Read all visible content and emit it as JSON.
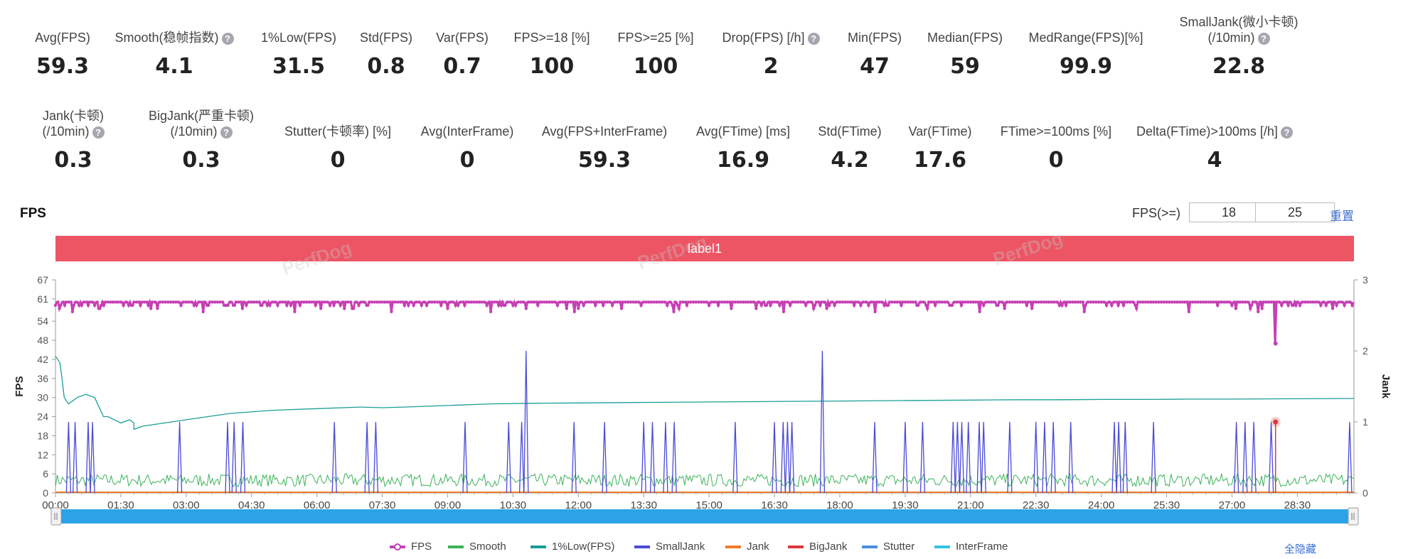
{
  "metrics_row1": [
    {
      "label": "Avg(FPS)",
      "value": "59.3",
      "help": false
    },
    {
      "label": "Smooth(稳帧指数)",
      "value": "4.1",
      "help": true
    },
    {
      "label": "1%Low(FPS)",
      "value": "31.5",
      "help": false
    },
    {
      "label": "Std(FPS)",
      "value": "0.8",
      "help": false
    },
    {
      "label": "Var(FPS)",
      "value": "0.7",
      "help": false
    },
    {
      "label": "FPS>=18 [%]",
      "value": "100",
      "help": false
    },
    {
      "label": "FPS>=25 [%]",
      "value": "100",
      "help": false
    },
    {
      "label": "Drop(FPS) [/h]",
      "value": "2",
      "help": true
    },
    {
      "label": "Min(FPS)",
      "value": "47",
      "help": false
    },
    {
      "label": "Median(FPS)",
      "value": "59",
      "help": false
    },
    {
      "label": "MedRange(FPS)[%]",
      "value": "99.9",
      "help": false
    },
    {
      "label": "SmallJank(微小卡顿)",
      "label2": "(/10min)",
      "value": "22.8",
      "help": true
    }
  ],
  "metrics_row2": [
    {
      "label": "Jank(卡顿)",
      "label2": "(/10min)",
      "value": "0.3",
      "help": true
    },
    {
      "label": "BigJank(严重卡顿)",
      "label2": "(/10min)",
      "value": "0.3",
      "help": true
    },
    {
      "label": "Stutter(卡顿率) [%]",
      "value": "0",
      "help": false
    },
    {
      "label": "Avg(InterFrame)",
      "value": "0",
      "help": false
    },
    {
      "label": "Avg(FPS+InterFrame)",
      "value": "59.3",
      "help": false
    },
    {
      "label": "Avg(FTime) [ms]",
      "value": "16.9",
      "help": false
    },
    {
      "label": "Std(FTime)",
      "value": "4.2",
      "help": false
    },
    {
      "label": "Var(FTime)",
      "value": "17.6",
      "help": false
    },
    {
      "label": "FTime>=100ms [%]",
      "value": "0",
      "help": false
    },
    {
      "label": "Delta(FTime)>100ms [/h]",
      "value": "4",
      "help": true
    }
  ],
  "chart_section": {
    "title": "FPS",
    "threshold_label": "FPS(>=)",
    "threshold_low": "18",
    "threshold_high": "25",
    "reset_label": "重置",
    "annotation_label": "label1",
    "hide_all_label": "全隐藏",
    "watermark": "PerfDog"
  },
  "chart_data": {
    "type": "line",
    "ylabel": "FPS",
    "y2label": "Jank",
    "yticks": [
      "0",
      "6",
      "12",
      "18",
      "24",
      "30",
      "36",
      "42",
      "48",
      "54",
      "61",
      "67"
    ],
    "y2ticks": [
      "0",
      "1",
      "2",
      "3"
    ],
    "ylim": [
      0,
      67
    ],
    "y2lim": [
      0,
      3
    ],
    "xticks": [
      "00:00",
      "01:30",
      "03:00",
      "04:30",
      "06:00",
      "07:30",
      "09:00",
      "10:30",
      "12:00",
      "13:30",
      "15:00",
      "16:30",
      "18:00",
      "19:30",
      "21:00",
      "22:30",
      "24:00",
      "25:30",
      "27:00",
      "28:30"
    ],
    "x_range_minutes": [
      0,
      29.8
    ],
    "legend": [
      {
        "name": "FPS",
        "color": "#c640b4",
        "marker": true
      },
      {
        "name": "Smooth",
        "color": "#3cb35a",
        "marker": false
      },
      {
        "name": "1%Low(FPS)",
        "color": "#1a9e96",
        "marker": false
      },
      {
        "name": "SmallJank",
        "color": "#4a4ad6",
        "marker": false
      },
      {
        "name": "Jank",
        "color": "#f07b2c",
        "marker": false
      },
      {
        "name": "BigJank",
        "color": "#d9393c",
        "marker": false
      },
      {
        "name": "Stutter",
        "color": "#4a8de0",
        "marker": false
      },
      {
        "name": "InterFrame",
        "color": "#33c4dd",
        "marker": false
      }
    ],
    "fps_series": {
      "baseline": 60,
      "dips": [
        [
          0.1,
          58
        ],
        [
          0.4,
          57
        ],
        [
          1.0,
          58
        ],
        [
          2.2,
          58
        ],
        [
          3.4,
          57
        ],
        [
          4.3,
          58
        ],
        [
          5.5,
          57
        ],
        [
          6.8,
          58
        ],
        [
          7.7,
          57
        ],
        [
          9.0,
          58
        ],
        [
          10.0,
          57
        ],
        [
          10.8,
          58
        ],
        [
          11.9,
          57
        ],
        [
          13.0,
          58
        ],
        [
          14.2,
          57
        ],
        [
          15.5,
          58
        ],
        [
          16.7,
          57
        ],
        [
          17.4,
          58
        ],
        [
          18.8,
          57
        ],
        [
          20.0,
          58
        ],
        [
          21.2,
          57
        ],
        [
          22.4,
          58
        ],
        [
          23.6,
          57
        ],
        [
          24.8,
          58
        ],
        [
          26.0,
          57
        ],
        [
          27.1,
          58
        ],
        [
          27.6,
          57
        ],
        [
          28.0,
          47
        ],
        [
          29.3,
          58
        ]
      ]
    },
    "low1_series": [
      [
        0,
        43
      ],
      [
        0.1,
        41
      ],
      [
        0.15,
        36
      ],
      [
        0.2,
        30
      ],
      [
        0.3,
        28
      ],
      [
        0.5,
        30
      ],
      [
        0.7,
        31
      ],
      [
        0.9,
        30
      ],
      [
        1.0,
        27
      ],
      [
        1.1,
        24
      ],
      [
        1.2,
        24
      ],
      [
        1.5,
        22
      ],
      [
        1.7,
        23
      ],
      [
        1.8,
        22
      ],
      [
        1.8,
        20
      ],
      [
        2.0,
        21
      ],
      [
        2.5,
        22
      ],
      [
        3.0,
        23
      ],
      [
        3.5,
        24
      ],
      [
        4.0,
        25
      ],
      [
        5.0,
        26
      ],
      [
        6.0,
        26.5
      ],
      [
        7.0,
        27
      ],
      [
        7.5,
        26.8
      ],
      [
        8.0,
        27
      ],
      [
        9.0,
        27.5
      ],
      [
        10.0,
        28
      ],
      [
        11.0,
        28.2
      ],
      [
        12.0,
        28.3
      ],
      [
        13.0,
        28.4
      ],
      [
        14.0,
        28.5
      ],
      [
        15.0,
        28.6
      ],
      [
        16.0,
        28.7
      ],
      [
        17.0,
        28.8
      ],
      [
        18.0,
        28.9
      ],
      [
        19.0,
        29
      ],
      [
        20.0,
        29.1
      ],
      [
        21.0,
        29.2
      ],
      [
        22.0,
        29.3
      ],
      [
        23.0,
        29.3
      ],
      [
        24.0,
        29.4
      ],
      [
        25.0,
        29.4
      ],
      [
        26.0,
        29.5
      ],
      [
        27.0,
        29.5
      ],
      [
        28.0,
        29.6
      ],
      [
        29.8,
        29.7
      ]
    ],
    "smooth_range": [
      2,
      6
    ],
    "smalljank_spikes_minutes": [
      0.3,
      0.45,
      0.75,
      0.85,
      2.85,
      3.95,
      4.1,
      4.3,
      6.4,
      7.15,
      7.35,
      9.4,
      10.4,
      10.7,
      10.8,
      11.9,
      12.6,
      13.5,
      13.7,
      14.0,
      14.2,
      15.6,
      16.5,
      16.7,
      16.8,
      16.9,
      17.6,
      18.8,
      19.5,
      19.9,
      20.6,
      20.7,
      20.8,
      20.95,
      21.2,
      21.3,
      21.9,
      22.5,
      22.7,
      22.9,
      23.3,
      24.3,
      24.4,
      24.55,
      25.2,
      27.1,
      27.3,
      27.5,
      27.9,
      29.7
    ],
    "smalljank_tall_minutes": [
      10.8,
      17.6
    ],
    "bigjank_minutes": 28.0
  }
}
